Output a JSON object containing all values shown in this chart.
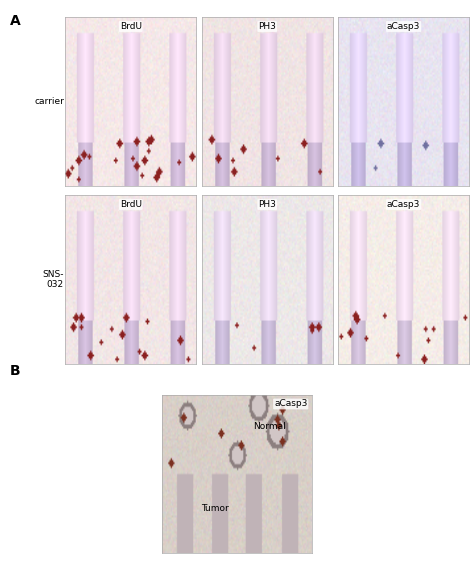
{
  "figure_width": 4.74,
  "figure_height": 5.64,
  "dpi": 100,
  "background_color": "#ffffff",
  "panel_A_label": "A",
  "panel_B_label": "B",
  "row_labels": [
    "carrier",
    "SNS-\n032"
  ],
  "col_labels": [
    "BrdU",
    "PH3",
    "aCasp3"
  ],
  "panel_B_col_label": "aCasp3",
  "panel_B_labels": [
    "Tumor",
    "Normal"
  ],
  "label_fontsize": 8,
  "panel_label_fontsize": 10,
  "img_bg_colors": [
    [
      "#f5e8e8",
      "#f0e4e4",
      "#e8e4f0"
    ],
    [
      "#f2e6e6",
      "#ede8e8",
      "#f5ede8"
    ]
  ],
  "img_bg_color_B": "#d8cfc8",
  "grid_rows": 2,
  "grid_cols": 3
}
